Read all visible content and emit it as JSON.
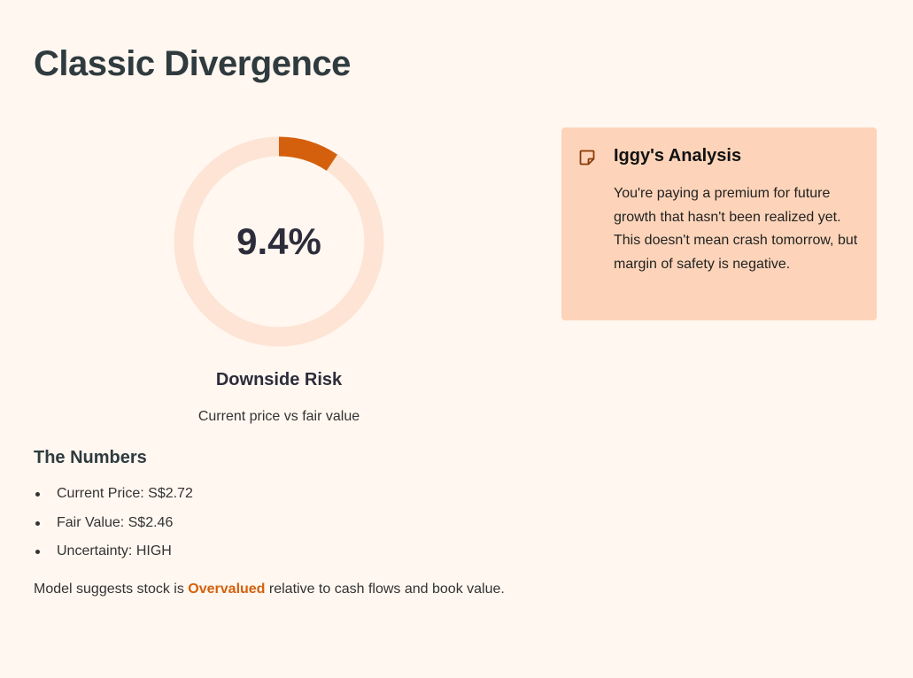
{
  "page": {
    "title": "Classic Divergence"
  },
  "gauge": {
    "value_label": "9.4%",
    "value_fraction": 0.094,
    "label": "Downside Risk",
    "caption": "Current price vs fair value",
    "colors": {
      "fill": "#d4600d",
      "track": "#fde4d4"
    }
  },
  "numbers": {
    "heading": "The Numbers",
    "items": [
      "Current Price: S$2.72",
      "Fair Value: S$2.46",
      "Uncertainty: HIGH"
    ]
  },
  "summary": {
    "prefix": "Model suggests stock is ",
    "highlight": "Overvalued",
    "suffix": " relative to cash flows and book value.",
    "highlight_color": "#d4600d"
  },
  "analysis": {
    "icon": "note-icon",
    "title": "Iggy's Analysis",
    "body": "You're paying a premium for future growth that hasn't been realized yet. This doesn't mean crash tomorrow, but margin of safety is negative.",
    "background": "#fdd4b9"
  }
}
